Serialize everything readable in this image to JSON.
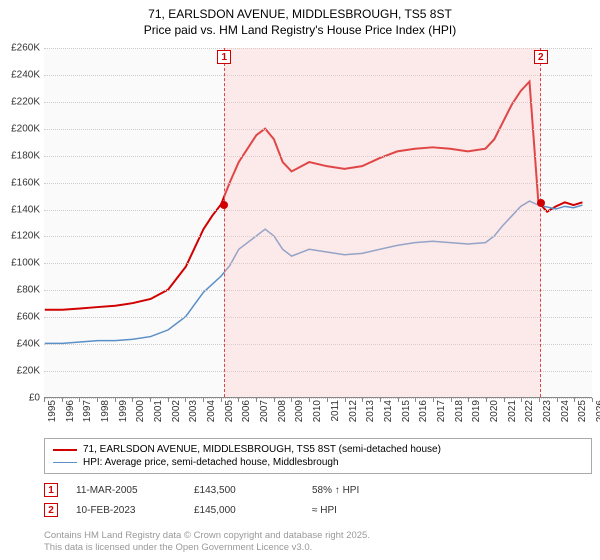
{
  "title_line1": "71, EARLSDON AVENUE, MIDDLESBROUGH, TS5 8ST",
  "title_line2": "Price paid vs. HM Land Registry's House Price Index (HPI)",
  "chart": {
    "type": "line",
    "background_color": "#fafafa",
    "grid_color": "#cccccc",
    "axis_color": "#888888",
    "label_fontsize": 10,
    "title_fontsize": 12,
    "x_years": [
      1995,
      1996,
      1997,
      1998,
      1999,
      2000,
      2001,
      2002,
      2003,
      2004,
      2005,
      2006,
      2007,
      2008,
      2009,
      2010,
      2011,
      2012,
      2013,
      2014,
      2015,
      2016,
      2017,
      2018,
      2019,
      2020,
      2021,
      2022,
      2023,
      2024,
      2025,
      2026
    ],
    "xlim": [
      1995,
      2026
    ],
    "ylim": [
      0,
      260000
    ],
    "ytick_step": 20000,
    "y_labels": [
      "£0",
      "£20K",
      "£40K",
      "£60K",
      "£80K",
      "£100K",
      "£120K",
      "£140K",
      "£160K",
      "£180K",
      "£200K",
      "£220K",
      "£240K",
      "£260K"
    ],
    "series": [
      {
        "name": "71, EARLSDON AVENUE, MIDDLESBROUGH, TS5 8ST (semi-detached house)",
        "color": "#d00000",
        "line_width": 2,
        "points": [
          [
            1995,
            65000
          ],
          [
            1996,
            65000
          ],
          [
            1997,
            66000
          ],
          [
            1998,
            67000
          ],
          [
            1999,
            68000
          ],
          [
            2000,
            70000
          ],
          [
            2001,
            73000
          ],
          [
            2002,
            80000
          ],
          [
            2003,
            97000
          ],
          [
            2004,
            125000
          ],
          [
            2004.5,
            135000
          ],
          [
            2005,
            143500
          ],
          [
            2005.5,
            160000
          ],
          [
            2006,
            175000
          ],
          [
            2006.5,
            185000
          ],
          [
            2007,
            195000
          ],
          [
            2007.5,
            200000
          ],
          [
            2008,
            192000
          ],
          [
            2008.5,
            175000
          ],
          [
            2009,
            168000
          ],
          [
            2010,
            175000
          ],
          [
            2011,
            172000
          ],
          [
            2012,
            170000
          ],
          [
            2013,
            172000
          ],
          [
            2014,
            178000
          ],
          [
            2015,
            183000
          ],
          [
            2016,
            185000
          ],
          [
            2017,
            186000
          ],
          [
            2018,
            185000
          ],
          [
            2019,
            183000
          ],
          [
            2020,
            185000
          ],
          [
            2020.5,
            192000
          ],
          [
            2021,
            205000
          ],
          [
            2021.5,
            218000
          ],
          [
            2022,
            228000
          ],
          [
            2022.5,
            235000
          ],
          [
            2023,
            145000
          ],
          [
            2023.5,
            138000
          ],
          [
            2024,
            142000
          ],
          [
            2024.5,
            145000
          ],
          [
            2025,
            143000
          ],
          [
            2025.5,
            145000
          ]
        ]
      },
      {
        "name": "HPI: Average price, semi-detached house, Middlesbrough",
        "color": "#5b8fc7",
        "line_width": 1.5,
        "points": [
          [
            1995,
            40000
          ],
          [
            1996,
            40000
          ],
          [
            1997,
            41000
          ],
          [
            1998,
            42000
          ],
          [
            1999,
            42000
          ],
          [
            2000,
            43000
          ],
          [
            2001,
            45000
          ],
          [
            2002,
            50000
          ],
          [
            2003,
            60000
          ],
          [
            2004,
            78000
          ],
          [
            2005,
            90000
          ],
          [
            2005.5,
            98000
          ],
          [
            2006,
            110000
          ],
          [
            2007,
            120000
          ],
          [
            2007.5,
            125000
          ],
          [
            2008,
            120000
          ],
          [
            2008.5,
            110000
          ],
          [
            2009,
            105000
          ],
          [
            2010,
            110000
          ],
          [
            2011,
            108000
          ],
          [
            2012,
            106000
          ],
          [
            2013,
            107000
          ],
          [
            2014,
            110000
          ],
          [
            2015,
            113000
          ],
          [
            2016,
            115000
          ],
          [
            2017,
            116000
          ],
          [
            2018,
            115000
          ],
          [
            2019,
            114000
          ],
          [
            2020,
            115000
          ],
          [
            2020.5,
            120000
          ],
          [
            2021,
            128000
          ],
          [
            2021.5,
            135000
          ],
          [
            2022,
            142000
          ],
          [
            2022.5,
            146000
          ],
          [
            2023,
            143000
          ],
          [
            2024,
            140000
          ],
          [
            2024.5,
            142000
          ],
          [
            2025,
            141000
          ],
          [
            2025.5,
            143000
          ]
        ]
      }
    ],
    "sale_band": {
      "start": 2005.2,
      "end": 2023.1,
      "fill": "rgba(255,200,200,0.35)",
      "border": "#d44"
    },
    "sale_markers": [
      {
        "num": "1",
        "year": 2005.2,
        "price": 143500,
        "color": "#d00000"
      },
      {
        "num": "2",
        "year": 2023.1,
        "price": 145000,
        "color": "#d00000"
      }
    ]
  },
  "legend": {
    "border_color": "#aaaaaa",
    "items": [
      {
        "color": "#d00000",
        "width": 2,
        "label": "71, EARLSDON AVENUE, MIDDLESBROUGH, TS5 8ST (semi-detached house)"
      },
      {
        "color": "#5b8fc7",
        "width": 1.5,
        "label": "HPI: Average price, semi-detached house, Middlesbrough"
      }
    ]
  },
  "sales_rows": [
    {
      "num": "1",
      "date": "11-MAR-2005",
      "price": "£143,500",
      "hpi": "58% ↑ HPI"
    },
    {
      "num": "2",
      "date": "10-FEB-2023",
      "price": "£145,000",
      "hpi": "≈ HPI"
    }
  ],
  "footer_line1": "Contains HM Land Registry data © Crown copyright and database right 2025.",
  "footer_line2": "This data is licensed under the Open Government Licence v3.0."
}
